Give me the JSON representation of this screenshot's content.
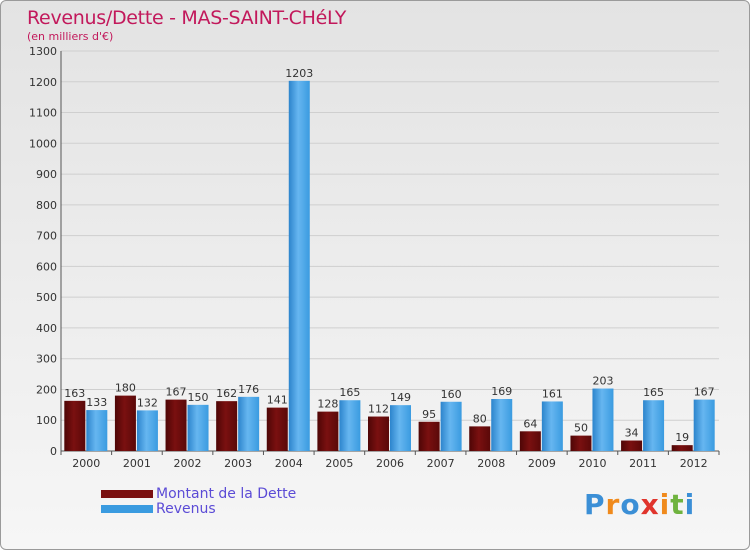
{
  "chart_data": {
    "type": "bar",
    "title": "Revenus/Dette - MAS-SAINT-CHéLY",
    "subtitle": "(en milliers d'€)",
    "xlabel": "",
    "ylabel": "",
    "ylim": [
      0,
      1300
    ],
    "yticks": [
      0,
      100,
      200,
      300,
      400,
      500,
      600,
      700,
      800,
      900,
      1000,
      1100,
      1200,
      1300
    ],
    "categories": [
      "2000",
      "2001",
      "2002",
      "2003",
      "2004",
      "2005",
      "2006",
      "2007",
      "2008",
      "2009",
      "2010",
      "2011",
      "2012"
    ],
    "series": [
      {
        "name": "Montant de la Dette",
        "color": "#7a1010",
        "values": [
          163,
          180,
          167,
          162,
          141,
          128,
          112,
          95,
          80,
          64,
          50,
          34,
          19
        ]
      },
      {
        "name": "Revenus",
        "color": "#3a9be0",
        "values": [
          133,
          132,
          150,
          176,
          1203,
          165,
          149,
          160,
          169,
          161,
          203,
          165,
          167
        ]
      }
    ],
    "legend_position": "bottom-left"
  },
  "logo": {
    "letters": [
      {
        "char": "P",
        "color": "#3b8fd6"
      },
      {
        "char": "r",
        "color": "#f08a1c"
      },
      {
        "char": "o",
        "color": "#3b8fd6"
      },
      {
        "char": "x",
        "color": "#e0342c"
      },
      {
        "char": "i",
        "color": "#f08a1c"
      },
      {
        "char": "t",
        "color": "#6fb33f"
      },
      {
        "char": "i",
        "color": "#3b8fd6"
      }
    ]
  }
}
